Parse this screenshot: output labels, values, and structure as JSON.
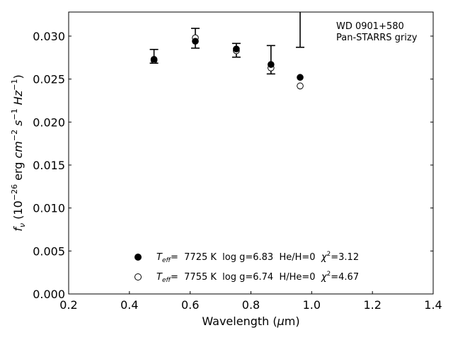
{
  "chart_data": {
    "type": "scatter",
    "title": "",
    "xlabel": "Wavelength (μm)",
    "xlabel_parts": [
      "Wavelength (",
      "μ",
      "m)"
    ],
    "ylabel": "f_ν (10^-26 erg cm^-2 s^-1 Hz^-1)",
    "ylabel_parts": {
      "f": "f",
      "nu": "ν",
      "open": " (10",
      "exp26": "−26",
      "erg": " erg ",
      "cm": "cm",
      "exp2": "−2",
      "s": " s",
      "exp1": "−1",
      "hz": " Hz",
      "close": ")"
    },
    "xlim": [
      0.2,
      1.4
    ],
    "ylim": [
      0.0,
      0.0328
    ],
    "xticks": [
      0.2,
      0.4,
      0.6,
      0.8,
      1.0,
      1.2,
      1.4
    ],
    "xtick_labels": [
      "0.2",
      "0.4",
      "0.6",
      "0.8",
      "1.0",
      "1.2",
      "1.4"
    ],
    "yticks": [
      0.0,
      0.005,
      0.01,
      0.015,
      0.02,
      0.025,
      0.03
    ],
    "ytick_labels": [
      "0.000",
      "0.005",
      "0.010",
      "0.015",
      "0.020",
      "0.025",
      "0.030"
    ],
    "grid": false,
    "annotation": [
      "WD 0901+580",
      "Pan-STARRS grizy"
    ],
    "observed": {
      "x": [
        0.481,
        0.617,
        0.752,
        0.866,
        0.962
      ],
      "y": [
        0.02765,
        0.02975,
        0.02835,
        0.02725,
        0.032
      ],
      "yerr": [
        0.0008,
        0.00115,
        0.0008,
        0.00165,
        0.0033
      ]
    },
    "series": [
      {
        "marker": "filled-circle",
        "color": "#000000",
        "x": [
          0.481,
          0.617,
          0.752,
          0.866,
          0.962
        ],
        "y": [
          0.0273,
          0.0294,
          0.0285,
          0.0267,
          0.0252
        ],
        "legend": {
          "t": "T",
          "sub": "eff",
          "rest": "=  7725 K  log g=6.83  He/H=0  ",
          "chi": "χ",
          "sup": "2",
          "val": "=3.12"
        }
      },
      {
        "marker": "open-circle",
        "color": "#000000",
        "x": [
          0.481,
          0.617,
          0.752,
          0.866,
          0.962
        ],
        "y": [
          0.0272,
          0.0298,
          0.0283,
          0.0263,
          0.0242
        ],
        "legend": {
          "t": "T",
          "sub": "eff",
          "rest": "=  7755 K  log g=6.74  H/He=0  ",
          "chi": "χ",
          "sup": "2",
          "val": "=4.67"
        }
      }
    ],
    "legend_position": "lower-center"
  }
}
